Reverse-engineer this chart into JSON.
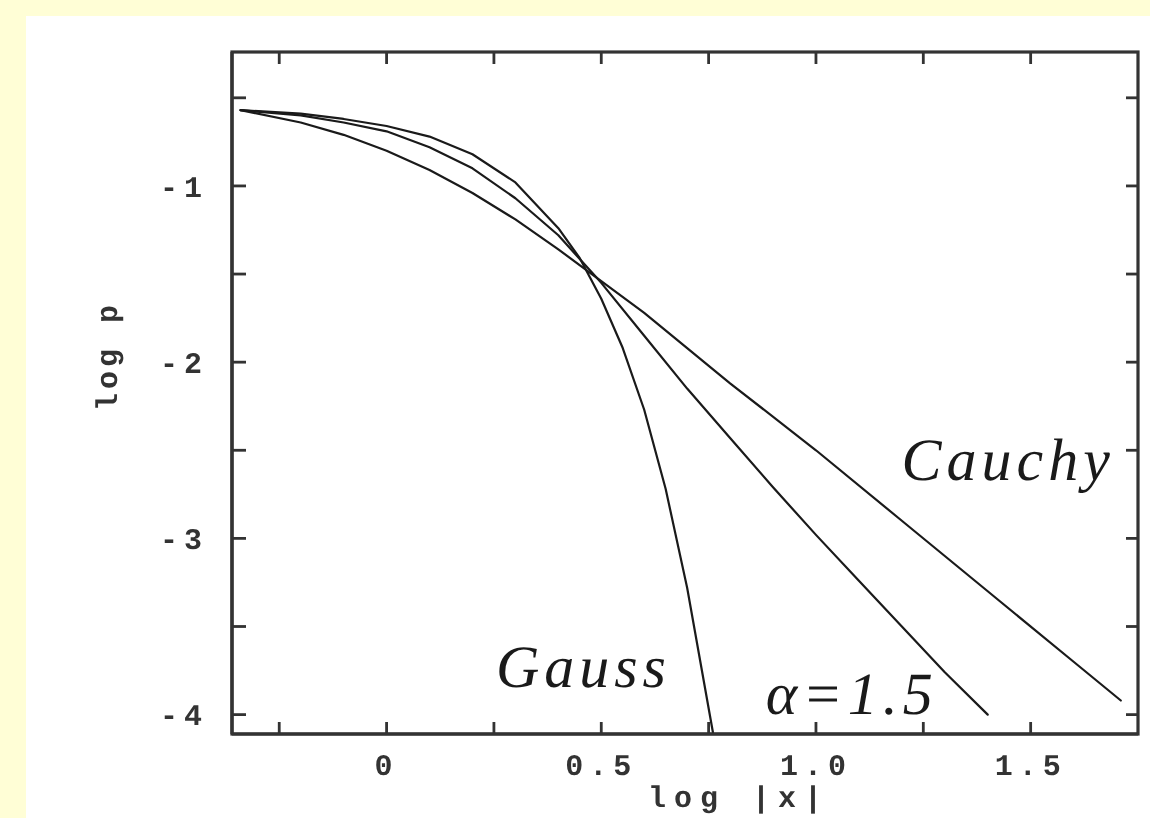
{
  "chart_data": {
    "type": "line",
    "xlabel": "log |x|",
    "ylabel": "log p",
    "series": [
      {
        "name": "Gauss",
        "color": "#1a1a1a",
        "x": [
          -0.34,
          -0.2,
          -0.1,
          0,
          0.1,
          0.2,
          0.3,
          0.4,
          0.45,
          0.5,
          0.55,
          0.6,
          0.65,
          0.7,
          0.76
        ],
        "values": [
          -0.57,
          -0.59,
          -0.62,
          -0.66,
          -0.72,
          -0.82,
          -0.98,
          -1.24,
          -1.41,
          -1.64,
          -1.92,
          -2.27,
          -2.72,
          -3.28,
          -4.1
        ]
      },
      {
        "name": "α=1.5",
        "color": "#1a1a1a",
        "x": [
          -0.34,
          -0.2,
          -0.1,
          0,
          0.1,
          0.2,
          0.3,
          0.4,
          0.5,
          0.6,
          0.7,
          0.8,
          0.9,
          1.0,
          1.1,
          1.2,
          1.3,
          1.4
        ],
        "values": [
          -0.57,
          -0.6,
          -0.64,
          -0.69,
          -0.78,
          -0.9,
          -1.07,
          -1.28,
          -1.55,
          -1.85,
          -2.15,
          -2.43,
          -2.71,
          -2.98,
          -3.24,
          -3.5,
          -3.76,
          -4.0
        ]
      },
      {
        "name": "Cauchy",
        "color": "#1a1a1a",
        "x": [
          -0.34,
          -0.2,
          -0.1,
          0,
          0.1,
          0.2,
          0.3,
          0.4,
          0.5,
          0.6,
          0.8,
          1.0,
          1.2,
          1.4,
          1.6,
          1.71
        ],
        "values": [
          -0.57,
          -0.64,
          -0.71,
          -0.8,
          -0.91,
          -1.04,
          -1.19,
          -1.36,
          -1.54,
          -1.72,
          -2.12,
          -2.5,
          -2.9,
          -3.3,
          -3.7,
          -3.92
        ]
      }
    ],
    "xlim": [
      -0.36,
      1.75
    ],
    "ylim": [
      -4.11,
      -0.24
    ],
    "xticks": [
      {
        "value": -0.25,
        "label": null
      },
      0,
      {
        "value": 0.25,
        "label": null
      },
      0.5,
      {
        "value": 0.75,
        "label": null
      },
      {
        "value": 1,
        "label": "1.0"
      },
      {
        "value": 1.25,
        "label": null
      },
      1.5
    ],
    "yticks": [
      -4,
      {
        "value": -3.5,
        "label": null
      },
      -3,
      {
        "value": -2.5,
        "label": null
      },
      -2,
      {
        "value": -1.5,
        "label": null
      },
      -1,
      {
        "value": -0.5,
        "label": null
      }
    ],
    "marker": "none",
    "line_style": "solid"
  }
}
